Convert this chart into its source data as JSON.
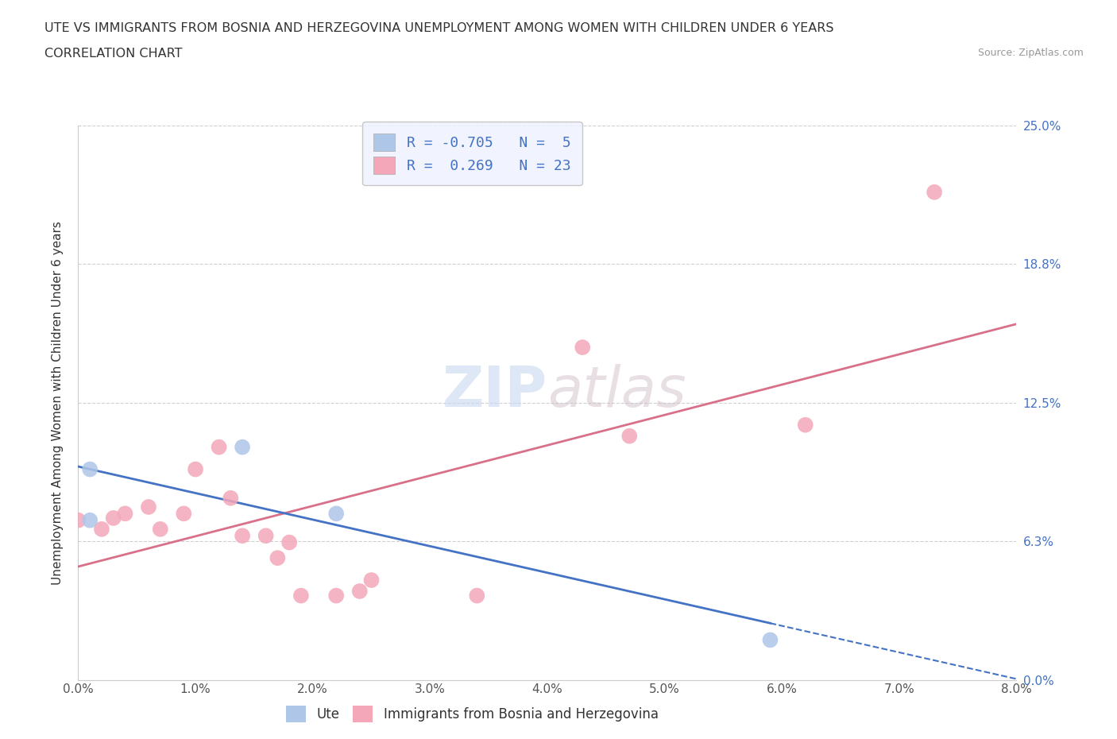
{
  "title_line1": "UTE VS IMMIGRANTS FROM BOSNIA AND HERZEGOVINA UNEMPLOYMENT AMONG WOMEN WITH CHILDREN UNDER 6 YEARS",
  "title_line2": "CORRELATION CHART",
  "source": "Source: ZipAtlas.com",
  "ylabel": "Unemployment Among Women with Children Under 6 years",
  "xlim": [
    0.0,
    0.08
  ],
  "ylim": [
    0.0,
    0.25
  ],
  "yticks": [
    0.0,
    0.0625,
    0.125,
    0.1875,
    0.25
  ],
  "ytick_labels": [
    "0.0%",
    "6.3%",
    "12.5%",
    "18.8%",
    "25.0%"
  ],
  "xticks": [
    0.0,
    0.01,
    0.02,
    0.03,
    0.04,
    0.05,
    0.06,
    0.07,
    0.08
  ],
  "xtick_labels": [
    "0.0%",
    "1.0%",
    "2.0%",
    "3.0%",
    "4.0%",
    "5.0%",
    "6.0%",
    "7.0%",
    "8.0%"
  ],
  "ute_color": "#aec6e8",
  "bh_color": "#f4a7b9",
  "ute_line_color": "#4472c4",
  "bh_line_color": "#d9708a",
  "ute_R": -0.705,
  "ute_N": 5,
  "bh_R": 0.269,
  "bh_N": 23,
  "ute_points_x": [
    0.001,
    0.001,
    0.014,
    0.022,
    0.059
  ],
  "ute_points_y": [
    0.072,
    0.095,
    0.105,
    0.075,
    0.018
  ],
  "bh_points_x": [
    0.0,
    0.002,
    0.003,
    0.004,
    0.006,
    0.007,
    0.009,
    0.01,
    0.012,
    0.013,
    0.014,
    0.016,
    0.017,
    0.018,
    0.019,
    0.022,
    0.024,
    0.025,
    0.034,
    0.043,
    0.047,
    0.062,
    0.073
  ],
  "bh_points_y": [
    0.072,
    0.068,
    0.073,
    0.075,
    0.078,
    0.068,
    0.075,
    0.095,
    0.105,
    0.082,
    0.065,
    0.065,
    0.055,
    0.062,
    0.038,
    0.038,
    0.04,
    0.045,
    0.038,
    0.15,
    0.11,
    0.115,
    0.22
  ],
  "watermark_zip": "ZIP",
  "watermark_atlas": "atlas",
  "legend_box_color": "#eef2ff",
  "background_color": "#ffffff",
  "grid_color": "#d0d0d0"
}
